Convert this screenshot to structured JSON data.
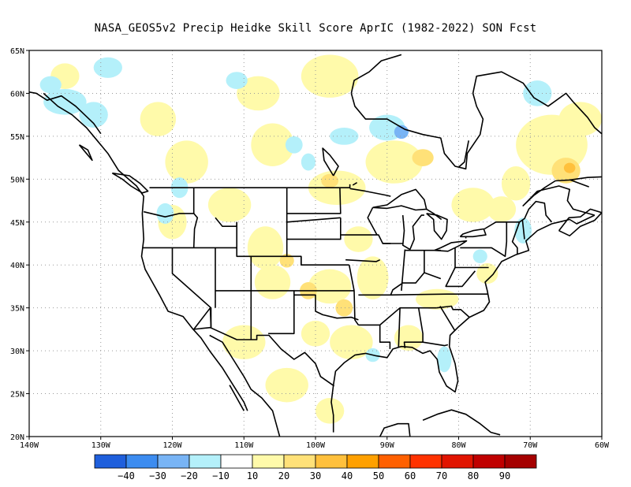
{
  "title": "NASA_GEOS5v2 Precip Heidke Skill Score AprIC (1982-2022) SON Fcst",
  "map": {
    "lon_range": [
      -140,
      -60
    ],
    "lat_range": [
      20,
      65
    ],
    "lon_ticks": [
      {
        "value": -140,
        "label": "140W"
      },
      {
        "value": -130,
        "label": "130W"
      },
      {
        "value": -120,
        "label": "120W"
      },
      {
        "value": -110,
        "label": "110W"
      },
      {
        "value": -100,
        "label": "100W"
      },
      {
        "value": -90,
        "label": "90W"
      },
      {
        "value": -80,
        "label": "80W"
      },
      {
        "value": -70,
        "label": "70W"
      },
      {
        "value": -60,
        "label": "60W"
      }
    ],
    "lat_ticks": [
      {
        "value": 20,
        "label": "20N"
      },
      {
        "value": 25,
        "label": "25N"
      },
      {
        "value": 30,
        "label": "30N"
      },
      {
        "value": 35,
        "label": "35N"
      },
      {
        "value": 40,
        "label": "40N"
      },
      {
        "value": 45,
        "label": "45N"
      },
      {
        "value": 50,
        "label": "50N"
      },
      {
        "value": 55,
        "label": "55N"
      },
      {
        "value": 60,
        "label": "60N"
      },
      {
        "value": 65,
        "label": "65N"
      }
    ],
    "gridlines": "dotted"
  },
  "colorbar": {
    "colors": [
      "#1f5fdc",
      "#3c8cf0",
      "#78b4f5",
      "#b4f0fa",
      "#ffffff",
      "#fffaaa",
      "#ffe178",
      "#ffc03c",
      "#ffa000",
      "#ff6000",
      "#ff3200",
      "#e11400",
      "#c00000",
      "#a50000"
    ],
    "labels": [
      "−40",
      "−30",
      "−20",
      "−10",
      "10",
      "20",
      "30",
      "40",
      "50",
      "60",
      "70",
      "80",
      "90"
    ]
  },
  "skill_patches": [
    {
      "lon": -98,
      "lat": 37.5,
      "rlon": 3,
      "rlat": 2,
      "level": "20"
    },
    {
      "lon": -96,
      "lat": 35,
      "rlon": 1.2,
      "rlat": 1,
      "level": "30"
    },
    {
      "lon": -92,
      "lat": 38.5,
      "rlon": 2.2,
      "rlat": 2.5,
      "level": "20"
    },
    {
      "lon": -101,
      "lat": 37,
      "rlon": 1.2,
      "rlat": 1,
      "level": "30"
    },
    {
      "lon": -106,
      "lat": 38,
      "rlon": 2.5,
      "rlat": 2,
      "level": "20"
    },
    {
      "lon": -107,
      "lat": 42,
      "rlon": 2.5,
      "rlat": 2.5,
      "level": "20"
    },
    {
      "lon": -104,
      "lat": 40.5,
      "rlon": 1,
      "rlat": 0.8,
      "level": "30"
    },
    {
      "lon": -95,
      "lat": 31,
      "rlon": 3,
      "rlat": 2,
      "level": "20"
    },
    {
      "lon": -110,
      "lat": 31,
      "rlon": 3,
      "rlat": 2,
      "level": "20"
    },
    {
      "lon": -100,
      "lat": 32,
      "rlon": 2,
      "rlat": 1.5,
      "level": "20"
    },
    {
      "lon": -83,
      "lat": 36,
      "rlon": 3,
      "rlat": 1.2,
      "level": "20"
    },
    {
      "lon": -97,
      "lat": 49,
      "rlon": 4,
      "rlat": 2,
      "level": "20"
    },
    {
      "lon": -98,
      "lat": 49.8,
      "rlon": 1.2,
      "rlat": 0.8,
      "level": "30"
    },
    {
      "lon": -89,
      "lat": 52,
      "rlon": 4,
      "rlat": 2.5,
      "level": "20"
    },
    {
      "lon": -85,
      "lat": 52.5,
      "rlon": 1.5,
      "rlat": 1,
      "level": "30"
    },
    {
      "lon": -106,
      "lat": 54,
      "rlon": 3,
      "rlat": 2.5,
      "level": "20"
    },
    {
      "lon": -118,
      "lat": 52,
      "rlon": 3,
      "rlat": 2.5,
      "level": "20"
    },
    {
      "lon": -112,
      "lat": 47,
      "rlon": 3,
      "rlat": 2,
      "level": "20"
    },
    {
      "lon": -98,
      "lat": 62,
      "rlon": 4,
      "rlat": 2.5,
      "level": "20"
    },
    {
      "lon": -108,
      "lat": 60,
      "rlon": 3,
      "rlat": 2,
      "level": "20"
    },
    {
      "lon": -67,
      "lat": 54,
      "rlon": 5,
      "rlat": 3.5,
      "level": "20"
    },
    {
      "lon": -65,
      "lat": 51,
      "rlon": 2,
      "rlat": 1.5,
      "level": "30"
    },
    {
      "lon": -64.5,
      "lat": 51.3,
      "rlon": 0.8,
      "rlat": 0.6,
      "level": "40"
    },
    {
      "lon": -78,
      "lat": 47,
      "rlon": 3,
      "rlat": 2,
      "level": "20"
    },
    {
      "lon": -72,
      "lat": 49.5,
      "rlon": 2,
      "rlat": 2,
      "level": "20"
    },
    {
      "lon": -63,
      "lat": 57,
      "rlon": 3,
      "rlat": 2,
      "level": "20"
    },
    {
      "lon": -122,
      "lat": 57,
      "rlon": 2.5,
      "rlat": 2,
      "level": "20"
    },
    {
      "lon": -135,
      "lat": 62,
      "rlon": 2,
      "rlat": 1.5,
      "level": "20"
    },
    {
      "lon": -104,
      "lat": 26,
      "rlon": 3,
      "rlat": 2,
      "level": "20"
    },
    {
      "lon": -98,
      "lat": 23,
      "rlon": 2,
      "rlat": 1.5,
      "level": "20"
    },
    {
      "lon": -74,
      "lat": 46.5,
      "rlon": 2,
      "rlat": 1.5,
      "level": "20"
    },
    {
      "lon": -120,
      "lat": 45,
      "rlon": 2,
      "rlat": 2,
      "level": "20"
    },
    {
      "lon": -87,
      "lat": 31.5,
      "rlon": 2,
      "rlat": 1.5,
      "level": "20"
    },
    {
      "lon": -76,
      "lat": 39,
      "rlon": 1.5,
      "rlat": 1.2,
      "level": "20"
    },
    {
      "lon": -94,
      "lat": 43,
      "rlon": 2,
      "rlat": 1.5,
      "level": "20"
    },
    {
      "lon": -121,
      "lat": 46,
      "rlon": 1.2,
      "rlat": 1.2,
      "level": "-10"
    },
    {
      "lon": -90,
      "lat": 56,
      "rlon": 2.5,
      "rlat": 1.5,
      "level": "-10"
    },
    {
      "lon": -88,
      "lat": 55.5,
      "rlon": 1,
      "rlat": 0.8,
      "level": "-20"
    },
    {
      "lon": -96,
      "lat": 55,
      "rlon": 2,
      "rlat": 1,
      "level": "-10"
    },
    {
      "lon": -135,
      "lat": 59,
      "rlon": 3,
      "rlat": 1.5,
      "level": "-10"
    },
    {
      "lon": -137,
      "lat": 61,
      "rlon": 1.5,
      "rlat": 1,
      "level": "-10"
    },
    {
      "lon": -131,
      "lat": 57.5,
      "rlon": 2,
      "rlat": 1.5,
      "level": "-10"
    },
    {
      "lon": -129,
      "lat": 63,
      "rlon": 2,
      "rlat": 1.2,
      "level": "-10"
    },
    {
      "lon": -119,
      "lat": 49,
      "rlon": 1.2,
      "rlat": 1.2,
      "level": "-10"
    },
    {
      "lon": -71,
      "lat": 44,
      "rlon": 1.2,
      "rlat": 1.5,
      "level": "-10"
    },
    {
      "lon": -69,
      "lat": 60,
      "rlon": 2,
      "rlat": 1.5,
      "level": "-10"
    },
    {
      "lon": -77,
      "lat": 41,
      "rlon": 1,
      "rlat": 0.8,
      "level": "-10"
    },
    {
      "lon": -103,
      "lat": 54,
      "rlon": 1.2,
      "rlat": 1,
      "level": "-10"
    },
    {
      "lon": -111,
      "lat": 61.5,
      "rlon": 1.5,
      "rlat": 1,
      "level": "-10"
    },
    {
      "lon": -82,
      "lat": 29,
      "rlon": 1,
      "rlat": 1.5,
      "level": "-10"
    },
    {
      "lon": -92,
      "lat": 29.5,
      "rlon": 1,
      "rlat": 0.8,
      "level": "-10"
    },
    {
      "lon": -101,
      "lat": 52,
      "rlon": 1,
      "rlat": 1,
      "level": "-10"
    }
  ]
}
